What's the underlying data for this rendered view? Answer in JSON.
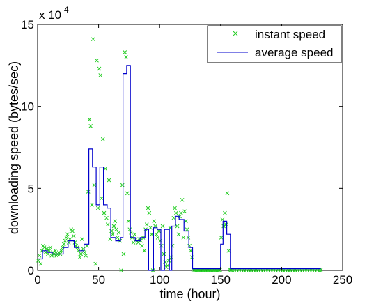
{
  "chart_data": {
    "type": "line",
    "title": "",
    "xlabel": "time (hour)",
    "ylabel": "downloading speed (bytes/sec)",
    "y_multiplier_label": "x 10",
    "y_multiplier_exponent": "4",
    "xlim": [
      0,
      250
    ],
    "ylim": [
      0,
      150000
    ],
    "x_ticks": [
      0,
      50,
      100,
      150,
      200,
      250
    ],
    "y_ticks": [
      0,
      50000,
      100000,
      150000
    ],
    "y_tick_labels": [
      "0",
      "5",
      "10",
      "15"
    ],
    "grid": false,
    "legend_position": "top-right",
    "series": [
      {
        "name": "instant speed",
        "kind": "scatter",
        "marker": "x",
        "color": "#22cc22",
        "points": [
          [
            0.5,
            6000
          ],
          [
            1.5,
            9000
          ],
          [
            2.5,
            4000
          ],
          [
            3.5,
            12000
          ],
          [
            4.5,
            15000
          ],
          [
            5.5,
            14000
          ],
          [
            6.5,
            11000
          ],
          [
            7.5,
            13000
          ],
          [
            8.5,
            10000
          ],
          [
            9.5,
            12000
          ],
          [
            10.5,
            14000
          ],
          [
            11.5,
            9000
          ],
          [
            12.5,
            11000
          ],
          [
            13.5,
            10000
          ],
          [
            14.5,
            12000
          ],
          [
            15.5,
            9000
          ],
          [
            16.5,
            10000
          ],
          [
            17.5,
            11000
          ],
          [
            18.5,
            10000
          ],
          [
            19.5,
            12000
          ],
          [
            20.5,
            14000
          ],
          [
            21.5,
            16000
          ],
          [
            22.5,
            18000
          ],
          [
            23.5,
            20000
          ],
          [
            24.5,
            22000
          ],
          [
            25.5,
            17000
          ],
          [
            26.5,
            19000
          ],
          [
            27.5,
            25000
          ],
          [
            28.5,
            24000
          ],
          [
            29.5,
            21000
          ],
          [
            30.5,
            17000
          ],
          [
            31.5,
            15000
          ],
          [
            32.5,
            14000
          ],
          [
            33.5,
            12000
          ],
          [
            34.5,
            8000
          ],
          [
            35.5,
            10000
          ],
          [
            36.5,
            19000
          ],
          [
            37.5,
            13000
          ],
          [
            38.5,
            11000
          ],
          [
            39.5,
            9000
          ],
          [
            40.5,
            15000
          ],
          [
            41.5,
            48000
          ],
          [
            42.5,
            92000
          ],
          [
            43.5,
            88000
          ],
          [
            44.5,
            40000
          ],
          [
            45.5,
            141000
          ],
          [
            46.5,
            52000
          ],
          [
            47.5,
            4000
          ],
          [
            48.5,
            128000
          ],
          [
            49.5,
            38000
          ],
          [
            50.5,
            123000
          ],
          [
            51.5,
            119000
          ],
          [
            52.5,
            44000
          ],
          [
            53.5,
            80000
          ],
          [
            54.5,
            35000
          ],
          [
            55.5,
            62000
          ],
          [
            56.5,
            32000
          ],
          [
            57.5,
            28000
          ],
          [
            58.5,
            55000
          ],
          [
            59.5,
            19000
          ],
          [
            60.5,
            24000
          ],
          [
            61.5,
            22000
          ],
          [
            62.5,
            27000
          ],
          [
            63.5,
            30000
          ],
          [
            64.5,
            25000
          ],
          [
            65.5,
            20000
          ],
          [
            66.5,
            23000
          ],
          [
            67.5,
            18000
          ],
          [
            68.5,
            0
          ],
          [
            69.5,
            52000
          ],
          [
            70.5,
            10000
          ],
          [
            71.5,
            133000
          ],
          [
            72.5,
            130000
          ],
          [
            73.5,
            47000
          ],
          [
            74.5,
            30000
          ],
          [
            75.5,
            25000
          ],
          [
            76.5,
            23000
          ],
          [
            77.5,
            20000
          ],
          [
            78.5,
            17000
          ],
          [
            79.5,
            22000
          ],
          [
            80.5,
            19000
          ],
          [
            81.5,
            18000
          ],
          [
            82.5,
            17000
          ],
          [
            83.5,
            19000
          ],
          [
            84.5,
            18000
          ],
          [
            85.5,
            15000
          ],
          [
            86.5,
            20000
          ],
          [
            87.5,
            12000
          ],
          [
            88.5,
            25000
          ],
          [
            89.5,
            28000
          ],
          [
            90.5,
            38000
          ],
          [
            91.5,
            35000
          ],
          [
            92.5,
            26000
          ],
          [
            93.5,
            22000
          ],
          [
            94.5,
            0
          ],
          [
            95.5,
            30000
          ],
          [
            96.5,
            27000
          ],
          [
            97.5,
            22000
          ],
          [
            98.5,
            20000
          ],
          [
            99.5,
            24000
          ],
          [
            100.5,
            18000
          ],
          [
            101.5,
            15000
          ],
          [
            102.5,
            27000
          ],
          [
            103.5,
            10000
          ],
          [
            104.5,
            5000
          ],
          [
            105.5,
            2000
          ],
          [
            106.5,
            3000
          ],
          [
            107.5,
            6000
          ],
          [
            108.5,
            26000
          ],
          [
            109.5,
            8000
          ],
          [
            110.5,
            15000
          ],
          [
            111.5,
            32000
          ],
          [
            112.5,
            38000
          ],
          [
            113.5,
            35000
          ],
          [
            114.5,
            27000
          ],
          [
            115.5,
            22000
          ],
          [
            116.5,
            33000
          ],
          [
            117.5,
            35000
          ],
          [
            118.5,
            43000
          ],
          [
            119.5,
            20000
          ],
          [
            120.5,
            36000
          ],
          [
            121.5,
            30000
          ],
          [
            122.5,
            25000
          ],
          [
            123.5,
            20000
          ],
          [
            124.5,
            15000
          ],
          [
            125.5,
            12000
          ],
          [
            126.5,
            8000
          ],
          [
            127.5,
            500
          ],
          [
            128.5,
            300
          ],
          [
            129.5,
            200
          ],
          [
            130.5,
            200
          ],
          [
            131.5,
            300
          ],
          [
            132.5,
            200
          ],
          [
            133.5,
            200
          ],
          [
            134.5,
            300
          ],
          [
            135.5,
            200
          ],
          [
            136.5,
            200
          ],
          [
            137.5,
            200
          ],
          [
            138.5,
            300
          ],
          [
            139.5,
            200
          ],
          [
            140.5,
            200
          ],
          [
            141.5,
            200
          ],
          [
            142.5,
            200
          ],
          [
            143.5,
            200
          ],
          [
            144.5,
            300
          ],
          [
            145.5,
            200
          ],
          [
            146.5,
            200
          ],
          [
            147.5,
            200
          ],
          [
            148.5,
            200
          ],
          [
            149.5,
            300
          ],
          [
            150.5,
            20000
          ],
          [
            151.5,
            31000
          ],
          [
            152.5,
            27000
          ],
          [
            153.5,
            35000
          ],
          [
            154.5,
            28000
          ],
          [
            155.5,
            47000
          ],
          [
            156.5,
            12000
          ],
          [
            157.5,
            300
          ],
          [
            158.5,
            200
          ],
          [
            159.5,
            200
          ],
          [
            161,
            200
          ],
          [
            163,
            200
          ],
          [
            165,
            200
          ],
          [
            167,
            200
          ],
          [
            169,
            200
          ],
          [
            171,
            200
          ],
          [
            173,
            200
          ],
          [
            175,
            200
          ],
          [
            177,
            200
          ],
          [
            179,
            200
          ],
          [
            181,
            200
          ],
          [
            183,
            200
          ],
          [
            185,
            200
          ],
          [
            187,
            200
          ],
          [
            189,
            200
          ],
          [
            191,
            200
          ],
          [
            193,
            200
          ],
          [
            195,
            200
          ],
          [
            197,
            200
          ],
          [
            199,
            200
          ],
          [
            201,
            200
          ],
          [
            203,
            200
          ],
          [
            205,
            200
          ],
          [
            207,
            200
          ],
          [
            209,
            200
          ],
          [
            211,
            200
          ],
          [
            213,
            200
          ],
          [
            215,
            200
          ],
          [
            217,
            200
          ],
          [
            219,
            200
          ],
          [
            221,
            200
          ],
          [
            223,
            200
          ],
          [
            225,
            200
          ],
          [
            227,
            200
          ],
          [
            229,
            200
          ],
          [
            231,
            200
          ],
          [
            232,
            200
          ]
        ]
      },
      {
        "name": "average speed",
        "kind": "step",
        "color": "#0000cc",
        "steps": [
          [
            0,
            7000
          ],
          [
            4,
            12000
          ],
          [
            8,
            11000
          ],
          [
            12,
            10000
          ],
          [
            16,
            10000
          ],
          [
            21,
            14000
          ],
          [
            25,
            18000
          ],
          [
            30,
            14000
          ],
          [
            34,
            12000
          ],
          [
            38,
            16000
          ],
          [
            42,
            74000
          ],
          [
            45,
            63000
          ],
          [
            48,
            40000
          ],
          [
            51,
            63000
          ],
          [
            54,
            40000
          ],
          [
            57,
            38000
          ],
          [
            60,
            20000
          ],
          [
            64,
            18000
          ],
          [
            68,
            20000
          ],
          [
            70,
            120000
          ],
          [
            73,
            125000
          ],
          [
            76,
            20000
          ],
          [
            80,
            18000
          ],
          [
            84,
            20000
          ],
          [
            88,
            25000
          ],
          [
            91,
            0
          ],
          [
            95,
            26000
          ],
          [
            98,
            25000
          ],
          [
            101,
            0
          ],
          [
            104,
            25000
          ],
          [
            108,
            0
          ],
          [
            110,
            27000
          ],
          [
            113,
            33000
          ],
          [
            116,
            31000
          ],
          [
            120,
            24000
          ],
          [
            124,
            14000
          ],
          [
            127,
            1000
          ],
          [
            130,
            1000
          ],
          [
            134,
            1000
          ],
          [
            138,
            1000
          ],
          [
            142,
            1000
          ],
          [
            146,
            1000
          ],
          [
            150,
            16000
          ],
          [
            152,
            30000
          ],
          [
            155,
            22000
          ],
          [
            158,
            1000
          ],
          [
            162,
            1000
          ],
          [
            232,
            1000
          ]
        ],
        "x_end": 232
      }
    ]
  }
}
